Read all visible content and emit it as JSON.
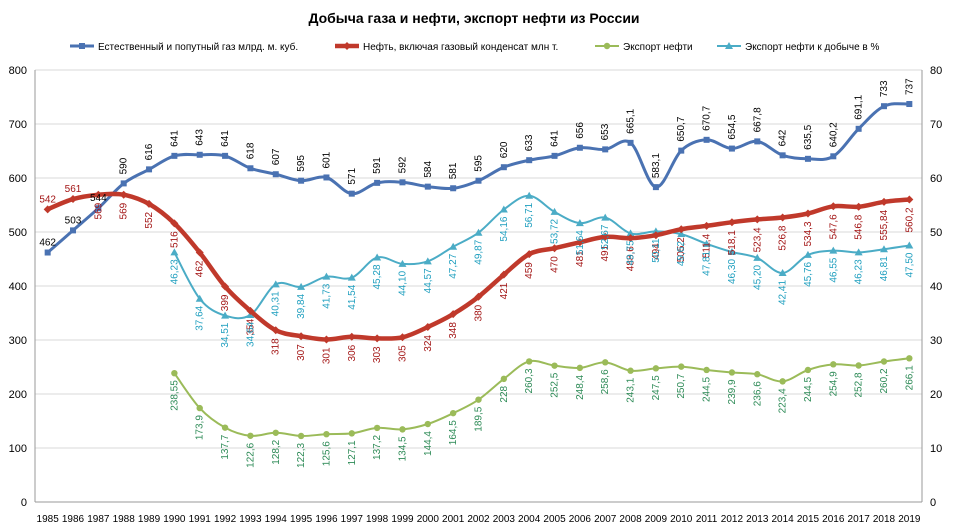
{
  "chart_data": {
    "type": "line",
    "title": "Добыча газа и  нефти, экспорт нефти из России",
    "x": [
      1985,
      1986,
      1987,
      1988,
      1989,
      1990,
      1991,
      1992,
      1993,
      1994,
      1995,
      1996,
      1997,
      1998,
      1999,
      2000,
      2001,
      2002,
      2003,
      2004,
      2005,
      2006,
      2007,
      2008,
      2009,
      2010,
      2011,
      2012,
      2013,
      2014,
      2015,
      2016,
      2017,
      2018,
      2019
    ],
    "y_left": {
      "min": 0,
      "max": 800,
      "ticks": [
        0,
        100,
        200,
        300,
        400,
        500,
        600,
        700,
        800
      ]
    },
    "y_right": {
      "min": 0,
      "max": 80,
      "ticks": [
        0,
        10,
        20,
        30,
        40,
        50,
        60,
        70,
        80
      ]
    },
    "grid": true,
    "legend_position": "top",
    "series": [
      {
        "name": "Естественный и попутный газ млрд. м. куб.",
        "axis": "left",
        "color": "#4a72b2",
        "marker": "square",
        "values": [
          462,
          503,
          544,
          590,
          616,
          641,
          643,
          641,
          618,
          607,
          595,
          601,
          571,
          591,
          592,
          584,
          581,
          595,
          620,
          633,
          641,
          656,
          653,
          665.1,
          583.1,
          650.7,
          670.7,
          654.5,
          667.8,
          642,
          635.5,
          640.2,
          691.1,
          733,
          737
        ],
        "labels": [
          "462",
          "503",
          "544",
          "590",
          "616",
          "641",
          "643",
          "641",
          "618",
          "607",
          "595",
          "601",
          "571",
          "591",
          "592",
          "584",
          "581",
          "595",
          "620",
          "633",
          "641",
          "656",
          "653",
          "665,1",
          "583,1",
          "650,7",
          "670,7",
          "654,5",
          "667,8",
          "642",
          "635,5",
          "640,2",
          "691,1",
          "733",
          "737"
        ]
      },
      {
        "name": "Нефть, включая газовый конденсат млн т.",
        "axis": "left",
        "color": "#c0392b",
        "marker": "diamond",
        "values": [
          542,
          561,
          569,
          569,
          552,
          516,
          462,
          399,
          354,
          318,
          307,
          301,
          306,
          303,
          305,
          324,
          348,
          380,
          421,
          459,
          470,
          481,
          491,
          488.6,
          494,
          505.2,
          511.4,
          518.1,
          523.4,
          526.8,
          534.3,
          547.6,
          546.8,
          555.84,
          560.2
        ],
        "labels": [
          "542",
          "561",
          "569",
          "569",
          "552",
          "516",
          "462",
          "399",
          "354",
          "318",
          "307",
          "301",
          "306",
          "303",
          "305",
          "324",
          "348",
          "380",
          "421",
          "459",
          "470",
          "481",
          "491",
          "488,6",
          "494",
          "505,2",
          "511,4",
          "518,1",
          "523,4",
          "526,8",
          "534,3",
          "547,6",
          "546,8",
          "555,84",
          "560,2"
        ]
      },
      {
        "name": "Экспорт нефти",
        "axis": "left",
        "color": "#9bbb59",
        "marker": "circle",
        "values": [
          null,
          null,
          null,
          null,
          null,
          238.55,
          173.9,
          137.7,
          122.6,
          128.2,
          122.3,
          125.6,
          127.1,
          137.2,
          134.5,
          144.4,
          164.5,
          189.5,
          228,
          260.3,
          252.5,
          248.4,
          258.6,
          243.1,
          247.5,
          250.7,
          244.5,
          239.9,
          236.6,
          223.4,
          244.5,
          254.9,
          252.8,
          260.2,
          266.1
        ],
        "labels": [
          null,
          null,
          null,
          null,
          null,
          "238,55",
          "173,9",
          "137,7",
          "122,6",
          "128,2",
          "122,3",
          "125,6",
          "127,1",
          "137,2",
          "134,5",
          "144,4",
          "164,5",
          "189,5",
          "228",
          "260,3",
          "252,5",
          "248,4",
          "258,6",
          "243,1",
          "247,5",
          "250,7",
          "244,5",
          "239,9",
          "236,6",
          "223,4",
          "244,5",
          "254,9",
          "252,8",
          "260,2",
          "266,1"
        ]
      },
      {
        "name": "Экспорт нефти к добыче в %",
        "axis": "right",
        "color": "#4bacc6",
        "marker": "triangle",
        "values": [
          null,
          null,
          null,
          null,
          null,
          46.23,
          37.64,
          34.51,
          34.64,
          40.31,
          39.84,
          41.73,
          41.54,
          45.28,
          44.1,
          44.57,
          47.27,
          49.87,
          54.16,
          56.71,
          53.72,
          51.64,
          52.67,
          49.75,
          50.11,
          49.62,
          47.81,
          46.3,
          45.2,
          42.41,
          45.76,
          46.55,
          46.23,
          46.81,
          47.5
        ],
        "labels": [
          null,
          null,
          null,
          null,
          null,
          "46,23",
          "37,64",
          "34,51",
          "34,64",
          "40,31",
          "39,84",
          "41,73",
          "41,54",
          "45,28",
          "44,10",
          "44,57",
          "47,27",
          "49,87",
          "54,16",
          "56,71",
          "53,72",
          "51,64",
          "52,67",
          "49,75",
          "50,11",
          "49,62",
          "47,81",
          "46,30",
          "45,20",
          "42,41",
          "45,76",
          "46,55",
          "46,23",
          "46,81",
          "47,50"
        ]
      }
    ]
  }
}
